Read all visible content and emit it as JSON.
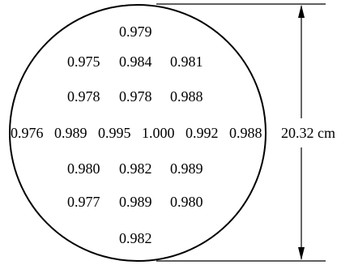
{
  "diagram": {
    "dimension_label": "20.32 cm",
    "rows": [
      [
        "0.979"
      ],
      [
        "0.975",
        "0.984",
        "0.981"
      ],
      [
        "0.978",
        "0.978",
        "0.988"
      ],
      [
        "0.976",
        "0.989",
        "0.995",
        "1.000",
        "0.992",
        "0.988"
      ],
      [
        "0.980",
        "0.982",
        "0.989"
      ],
      [
        "0.977",
        "0.989",
        "0.980"
      ],
      [
        "0.982"
      ]
    ]
  }
}
